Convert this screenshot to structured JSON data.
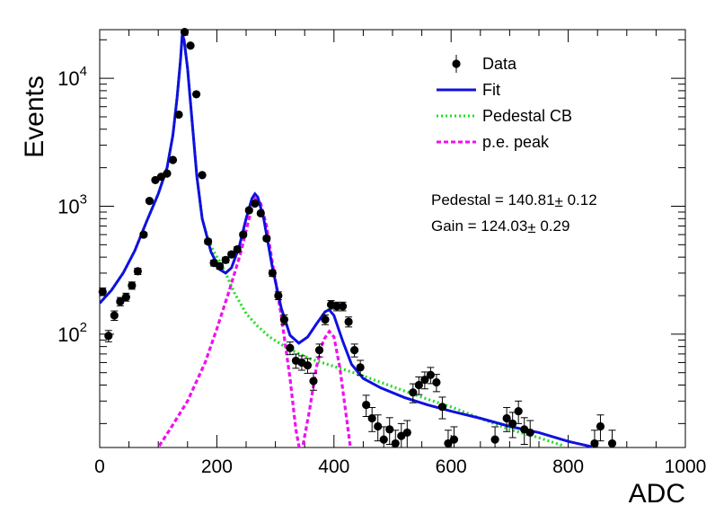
{
  "chart_data": {
    "type": "scatter",
    "xlabel": "ADC",
    "ylabel": "Events",
    "xlim": [
      0,
      1000
    ],
    "ylim": [
      13,
      24000
    ],
    "yscale": "log",
    "x_ticks": [
      {
        "value": 0,
        "label": "0"
      },
      {
        "value": 200,
        "label": "200"
      },
      {
        "value": 400,
        "label": "400"
      },
      {
        "value": 600,
        "label": "600"
      },
      {
        "value": 800,
        "label": "800"
      },
      {
        "value": 1000,
        "label": "1000"
      }
    ],
    "y_ticks": [
      {
        "value": 100,
        "base": "10",
        "exp": "2"
      },
      {
        "value": 1000,
        "base": "10",
        "exp": "3"
      },
      {
        "value": 10000,
        "base": "10",
        "exp": "4"
      }
    ],
    "legend": {
      "placement": "top-right",
      "entries": [
        {
          "label": "Data",
          "kind": "marker",
          "color": "#000000"
        },
        {
          "label": "Fit",
          "kind": "solid",
          "color": "#1010e0"
        },
        {
          "label": "Pedestal CB",
          "kind": "dotted",
          "color": "#22dd22"
        },
        {
          "label": "p.e. peak",
          "kind": "dashed",
          "color": "#ee11ee"
        }
      ]
    },
    "annotations": [
      {
        "pre": "Pedestal = 140.81",
        "pm": "±",
        "post": " 0.12"
      },
      {
        "pre": "Gain = 124.03",
        "pm": "±",
        "post": " 0.29"
      }
    ],
    "series": [
      {
        "name": "Data",
        "kind": "points",
        "color": "#000000",
        "points": [
          [
            5,
            215
          ],
          [
            15,
            97
          ],
          [
            25,
            140
          ],
          [
            35,
            180
          ],
          [
            45,
            195
          ],
          [
            55,
            240
          ],
          [
            65,
            310
          ],
          [
            75,
            600
          ],
          [
            85,
            1100
          ],
          [
            95,
            1600
          ],
          [
            105,
            1700
          ],
          [
            115,
            1800
          ],
          [
            125,
            2300
          ],
          [
            135,
            5200
          ],
          [
            145,
            23000
          ],
          [
            155,
            18000
          ],
          [
            165,
            7500
          ],
          [
            175,
            1750
          ],
          [
            185,
            530
          ],
          [
            195,
            360
          ],
          [
            205,
            340
          ],
          [
            215,
            380
          ],
          [
            225,
            420
          ],
          [
            235,
            460
          ],
          [
            245,
            600
          ],
          [
            255,
            930
          ],
          [
            265,
            1050
          ],
          [
            275,
            880
          ],
          [
            285,
            560
          ],
          [
            295,
            300
          ],
          [
            305,
            200
          ],
          [
            315,
            130
          ],
          [
            325,
            78
          ],
          [
            335,
            62
          ],
          [
            345,
            60
          ],
          [
            355,
            57
          ],
          [
            365,
            43
          ],
          [
            375,
            75
          ],
          [
            385,
            130
          ],
          [
            395,
            170
          ],
          [
            405,
            165
          ],
          [
            415,
            165
          ],
          [
            425,
            125
          ],
          [
            435,
            75
          ],
          [
            445,
            55
          ],
          [
            455,
            28
          ],
          [
            465,
            22
          ],
          [
            475,
            19
          ],
          [
            485,
            15
          ],
          [
            495,
            18
          ],
          [
            505,
            14
          ],
          [
            515,
            16
          ],
          [
            525,
            17
          ],
          [
            535,
            35
          ],
          [
            545,
            40
          ],
          [
            555,
            44
          ],
          [
            565,
            48
          ],
          [
            575,
            42
          ],
          [
            585,
            27
          ],
          [
            595,
            14
          ],
          [
            605,
            15
          ],
          [
            675,
            15
          ],
          [
            695,
            22
          ],
          [
            705,
            20
          ],
          [
            715,
            25
          ],
          [
            725,
            18
          ],
          [
            735,
            17
          ],
          [
            845,
            14
          ],
          [
            855,
            19
          ],
          [
            875,
            14
          ]
        ]
      },
      {
        "name": "Fit",
        "kind": "solid",
        "color": "#1010e0",
        "points": [
          [
            0,
            175
          ],
          [
            20,
            220
          ],
          [
            40,
            300
          ],
          [
            60,
            450
          ],
          [
            80,
            760
          ],
          [
            100,
            1250
          ],
          [
            115,
            2000
          ],
          [
            125,
            3600
          ],
          [
            132,
            7000
          ],
          [
            138,
            14000
          ],
          [
            141,
            22000
          ],
          [
            144,
            20000
          ],
          [
            150,
            12000
          ],
          [
            158,
            4500
          ],
          [
            166,
            1700
          ],
          [
            175,
            800
          ],
          [
            190,
            440
          ],
          [
            205,
            320
          ],
          [
            215,
            300
          ],
          [
            225,
            330
          ],
          [
            238,
            480
          ],
          [
            250,
            800
          ],
          [
            260,
            1150
          ],
          [
            265,
            1250
          ],
          [
            270,
            1180
          ],
          [
            280,
            800
          ],
          [
            295,
            330
          ],
          [
            310,
            160
          ],
          [
            325,
            98
          ],
          [
            340,
            85
          ],
          [
            355,
            95
          ],
          [
            370,
            120
          ],
          [
            385,
            150
          ],
          [
            392,
            155
          ],
          [
            400,
            140
          ],
          [
            415,
            88
          ],
          [
            430,
            58
          ],
          [
            450,
            45
          ],
          [
            480,
            38
          ],
          [
            520,
            32
          ],
          [
            560,
            28
          ],
          [
            600,
            25
          ],
          [
            650,
            22
          ],
          [
            700,
            19
          ],
          [
            750,
            17
          ],
          [
            800,
            14.5
          ],
          [
            840,
            13.2
          ]
        ]
      },
      {
        "name": "Pedestal CB",
        "kind": "dotted",
        "color": "#22dd22",
        "points": [
          [
            0,
            175
          ],
          [
            20,
            220
          ],
          [
            40,
            300
          ],
          [
            60,
            450
          ],
          [
            80,
            760
          ],
          [
            100,
            1250
          ],
          [
            115,
            2000
          ],
          [
            125,
            3600
          ],
          [
            132,
            7000
          ],
          [
            138,
            14000
          ],
          [
            141,
            22000
          ],
          [
            144,
            20000
          ],
          [
            150,
            12000
          ],
          [
            158,
            4500
          ],
          [
            166,
            1700
          ],
          [
            175,
            800
          ],
          [
            185,
            550
          ],
          [
            195,
            440
          ],
          [
            205,
            370
          ],
          [
            215,
            300
          ],
          [
            230,
            210
          ],
          [
            250,
            145
          ],
          [
            270,
            115
          ],
          [
            290,
            95
          ],
          [
            320,
            78
          ],
          [
            360,
            64
          ],
          [
            400,
            56
          ],
          [
            440,
            49
          ],
          [
            480,
            42
          ],
          [
            520,
            36
          ],
          [
            560,
            31
          ],
          [
            600,
            27
          ],
          [
            650,
            22
          ],
          [
            700,
            18
          ],
          [
            750,
            15.5
          ],
          [
            790,
            13.5
          ]
        ]
      },
      {
        "name": "p.e. peak",
        "kind": "dashed",
        "color": "#ee11ee",
        "points": [
          [
            95,
            12
          ],
          [
            120,
            18
          ],
          [
            150,
            30
          ],
          [
            180,
            60
          ],
          [
            200,
            110
          ],
          [
            220,
            210
          ],
          [
            240,
            420
          ],
          [
            255,
            800
          ],
          [
            265,
            1150
          ],
          [
            275,
            1050
          ],
          [
            285,
            700
          ],
          [
            295,
            360
          ],
          [
            310,
            140
          ],
          [
            325,
            45
          ],
          [
            335,
            18
          ],
          [
            342,
            12
          ]
        ]
      },
      {
        "name": "p.e. peak 2",
        "kind": "dashed",
        "color": "#ee11ee",
        "points": [
          [
            345,
            12
          ],
          [
            358,
            25
          ],
          [
            370,
            55
          ],
          [
            382,
            90
          ],
          [
            392,
            105
          ],
          [
            400,
            95
          ],
          [
            410,
            55
          ],
          [
            420,
            25
          ],
          [
            428,
            13
          ]
        ]
      }
    ]
  }
}
